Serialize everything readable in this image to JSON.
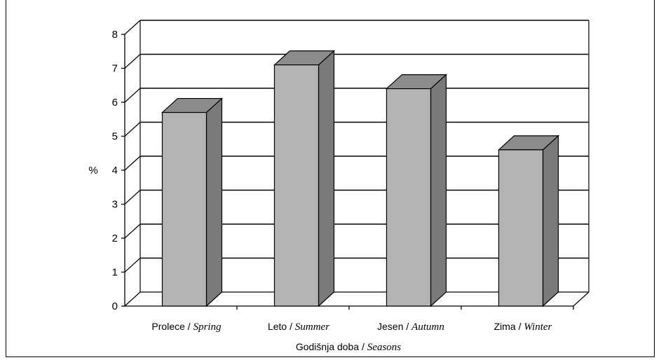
{
  "chart_data": {
    "type": "bar",
    "style": "3d-column",
    "categories": [
      {
        "local": "Prolece",
        "english": "Spring"
      },
      {
        "local": "Leto",
        "english": "Summer"
      },
      {
        "local": "Jesen",
        "english": "Autumn"
      },
      {
        "local": "Zima",
        "english": "Winter"
      }
    ],
    "values": [
      5.7,
      7.1,
      6.4,
      4.6
    ],
    "ylabel": "%",
    "xlabel": {
      "local": "Godišnja doba",
      "english": "Seasons"
    },
    "ylim": [
      0,
      8
    ],
    "yticks": [
      0,
      1,
      2,
      3,
      4,
      5,
      6,
      7,
      8
    ],
    "grid": true,
    "colors": {
      "bar_front": "#b4b4b4",
      "bar_side": "#7a7a7a",
      "bar_top": "#8c8c8c",
      "grid": "#000000"
    }
  }
}
